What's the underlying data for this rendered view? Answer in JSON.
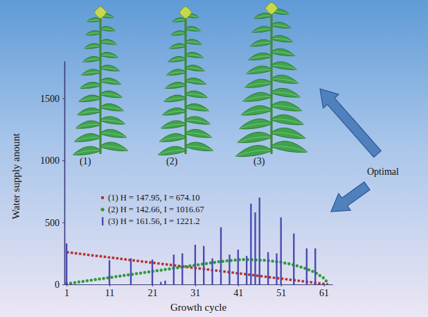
{
  "chart_data": {
    "type": "line",
    "x_label": "Growth cycle",
    "y_label": "Water supply anount",
    "xlim": [
      0.5,
      63
    ],
    "xticks": [
      1,
      11,
      21,
      31,
      41,
      51,
      61
    ],
    "ylim": [
      0,
      1800
    ],
    "yticks": [
      0,
      500,
      1000,
      1500
    ],
    "legend": "center",
    "annotations": [
      "(1)",
      "(2)",
      "(3)",
      "Optimal"
    ],
    "series": [
      {
        "name": "(1) H = 147.95, I = 674.10",
        "type": "line",
        "color": "#b5302a",
        "marker": "square",
        "line_style": "dotted",
        "x": [
          1,
          3,
          5,
          7,
          9,
          11,
          13,
          15,
          17,
          19,
          21,
          23,
          25,
          27,
          29,
          31,
          33,
          35,
          37,
          39,
          41,
          43,
          45,
          47,
          49,
          51,
          53,
          55,
          57,
          59,
          61,
          62
        ],
        "values": [
          260,
          251,
          243,
          234,
          226,
          217,
          209,
          200,
          192,
          183,
          175,
          166,
          158,
          149,
          141,
          132,
          124,
          115,
          107,
          98,
          89,
          81,
          72,
          64,
          55,
          47,
          38,
          30,
          21,
          13,
          4,
          0
        ]
      },
      {
        "name": "(2) H = 142.66, I = 1016.67",
        "type": "line",
        "color": "#2f9a3a",
        "marker": "circle",
        "line_style": "dotted",
        "x": [
          1,
          3,
          5,
          7,
          9,
          11,
          13,
          15,
          17,
          19,
          21,
          23,
          25,
          27,
          29,
          31,
          33,
          35,
          37,
          39,
          41,
          43,
          45,
          47,
          49,
          51,
          53,
          55,
          57,
          59,
          61,
          62
        ],
        "values": [
          5,
          15,
          25,
          35,
          45,
          55,
          65,
          75,
          85,
          95,
          105,
          115,
          125,
          135,
          145,
          155,
          165,
          175,
          185,
          192,
          198,
          200,
          198,
          195,
          188,
          178,
          165,
          148,
          125,
          95,
          50,
          10
        ]
      },
      {
        "name": "(3) H = 161.56, I = 1221.2",
        "type": "bar",
        "color": "#4b4bb0",
        "x": [
          1,
          11,
          16,
          21,
          23,
          24,
          26,
          28,
          31,
          33,
          35,
          37,
          39,
          41,
          43,
          44,
          45,
          46,
          48,
          50,
          51,
          54,
          57,
          59
        ],
        "values": [
          330,
          195,
          210,
          200,
          20,
          30,
          240,
          250,
          320,
          310,
          210,
          460,
          240,
          280,
          230,
          650,
          580,
          700,
          260,
          250,
          540,
          410,
          290,
          290
        ]
      }
    ]
  }
}
